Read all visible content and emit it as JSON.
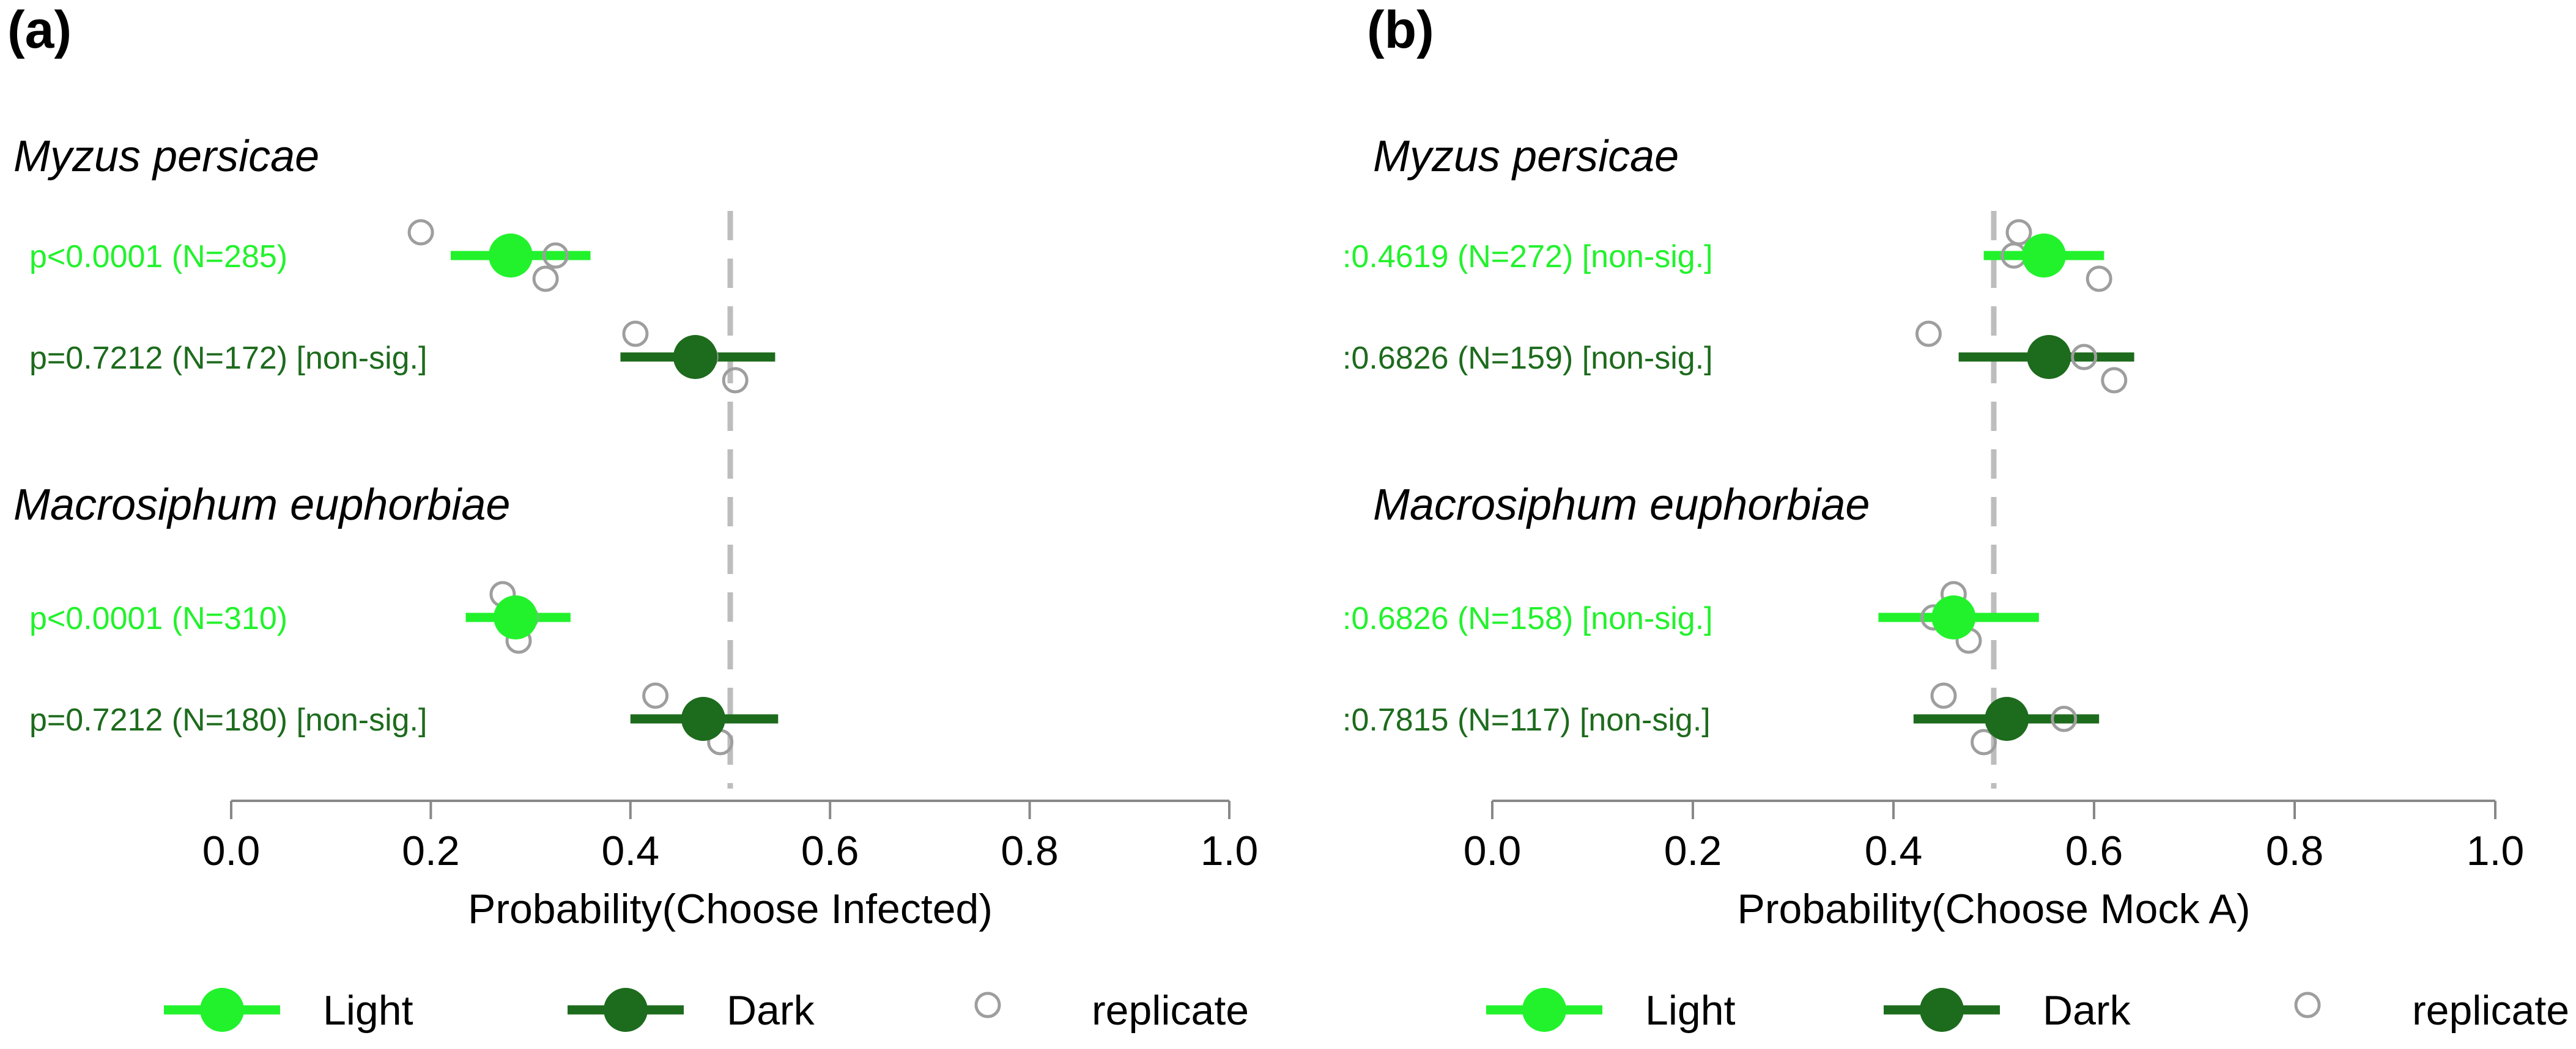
{
  "colors": {
    "light": "#22f22c",
    "dark": "#1d6b1d",
    "replicate": "#9e9e9e",
    "axis": "#888888",
    "reference": "#bdbdbd",
    "text": "#000000"
  },
  "chart_data": [
    {
      "type": "scatter",
      "panel_label": "(a)",
      "xlabel": "Probability(Choose Infected)",
      "xlim": [
        0.0,
        1.0
      ],
      "tick_labels": [
        "0.0",
        "0.2",
        "0.4",
        "0.6",
        "0.8",
        "1.0"
      ],
      "reference_line": 0.5,
      "groups": [
        {
          "species": "Myzus persicae",
          "rows": [
            {
              "series": "Light",
              "label": "p<0.0001 (N=285)",
              "mean": 0.28,
              "ci": [
                0.22,
                0.36
              ],
              "replicates": [
                0.19,
                0.325,
                0.315
              ]
            },
            {
              "series": "Dark",
              "label": "p=0.7212 (N=172) [non-sig.]",
              "mean": 0.465,
              "ci": [
                0.39,
                0.545
              ],
              "replicates": [
                0.405,
                0.475,
                0.505
              ]
            }
          ]
        },
        {
          "species": "Macrosiphum euphorbiae",
          "rows": [
            {
              "series": "Light",
              "label": "p<0.0001 (N=310)",
              "mean": 0.285,
              "ci": [
                0.235,
                0.34
              ],
              "replicates": [
                0.272,
                0.295,
                0.288
              ]
            },
            {
              "series": "Dark",
              "label": "p=0.7212 (N=180) [non-sig.]",
              "mean": 0.473,
              "ci": [
                0.4,
                0.548
              ],
              "replicates": [
                0.425,
                0.475,
                0.49
              ]
            }
          ]
        }
      ]
    },
    {
      "type": "scatter",
      "panel_label": "(b)",
      "xlabel": "Probability(Choose Mock A)",
      "xlim": [
        0.0,
        1.0
      ],
      "tick_labels": [
        "0.0",
        "0.2",
        "0.4",
        "0.6",
        "0.8",
        "1.0"
      ],
      "reference_line": 0.5,
      "groups": [
        {
          "species": "Myzus persicae",
          "rows": [
            {
              "series": "Light",
              "label": ":0.4619 (N=272) [non-sig.]",
              "mean": 0.55,
              "ci": [
                0.49,
                0.61
              ],
              "replicates": [
                0.525,
                0.52,
                0.605
              ]
            },
            {
              "series": "Dark",
              "label": ":0.6826 (N=159) [non-sig.]",
              "mean": 0.555,
              "ci": [
                0.465,
                0.64
              ],
              "replicates": [
                0.435,
                0.59,
                0.62
              ]
            }
          ]
        },
        {
          "species": "Macrosiphum euphorbiae",
          "rows": [
            {
              "series": "Light",
              "label": ":0.6826 (N=158) [non-sig.]",
              "mean": 0.46,
              "ci": [
                0.385,
                0.545
              ],
              "replicates": [
                0.46,
                0.44,
                0.475
              ]
            },
            {
              "series": "Dark",
              "label": ":0.7815 (N=117) [non-sig.]",
              "mean": 0.513,
              "ci": [
                0.42,
                0.605
              ],
              "replicates": [
                0.45,
                0.57,
                0.49
              ]
            }
          ]
        }
      ]
    }
  ],
  "legend": {
    "light_label": "Light",
    "dark_label": "Dark",
    "replicate_label": "replicate"
  }
}
